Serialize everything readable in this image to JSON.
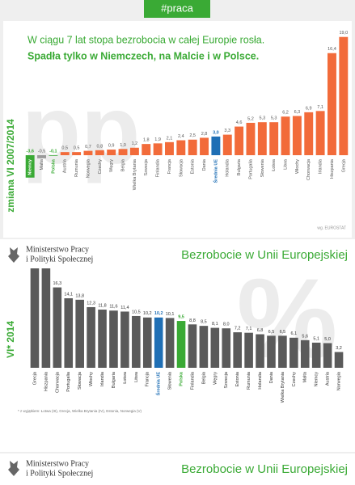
{
  "header": {
    "tag": "#praca"
  },
  "ministry": {
    "line1": "Ministerstwo Pracy",
    "line2": "i Polityki Społecznej",
    "title": "Bezrobocie w Unii Europejskiej"
  },
  "chart_data": [
    {
      "type": "bar",
      "title": "W ciągu 7 lat stopa bezrobocia w całej Europie rosła.",
      "subtitle": "Spadła tylko w Niemczech, na Malcie i w Polsce.",
      "side_label": "zmiana VI 2007/2014",
      "watermark": "pp",
      "source": "wg. EUROSTAT",
      "categories": [
        "Niemcy",
        "Malta",
        "Polska",
        "Austria",
        "Rumunia",
        "Norwegia",
        "Czechy",
        "Węgry",
        "Belgia",
        "Wielka Brytania",
        "Szwecja",
        "Finlandia",
        "Francja",
        "Słowacja",
        "Estonia",
        "Dania",
        "Średnia UE",
        "Holandia",
        "Bułgaria",
        "Portugalia",
        "Słowenia",
        "Łotwa",
        "Litwa",
        "Włochy",
        "Chorwacja",
        "Irlandia",
        "Hiszpania",
        "Grecja"
      ],
      "values": [
        -3.6,
        -0.5,
        -0.1,
        0.5,
        0.5,
        0.7,
        0.8,
        0.9,
        1.0,
        1.2,
        1.8,
        1.9,
        2.1,
        2.4,
        2.5,
        2.8,
        3.0,
        3.3,
        4.6,
        5.2,
        5.3,
        5.3,
        6.2,
        6.3,
        6.9,
        7.1,
        16.4,
        19.0
      ],
      "value_labels": [
        "-3,6",
        "-0,5",
        "-0,1",
        "0,5",
        "0,5",
        "0,7",
        "0,8",
        "0,9",
        "1,0",
        "1,2",
        "1,8",
        "1,9",
        "2,1",
        "2,4",
        "2,5",
        "2,8",
        "3,0",
        "3,3",
        "4,6",
        "5,2",
        "5,3",
        "5,3",
        "6,2",
        "6,3",
        "6,9",
        "7,1",
        "16,4",
        "19,0"
      ],
      "colors": [
        "#3aaa35",
        "#9a9a9a",
        "#3aaa35",
        "#f26b3a",
        "#f26b3a",
        "#f26b3a",
        "#f26b3a",
        "#f26b3a",
        "#f26b3a",
        "#f26b3a",
        "#f26b3a",
        "#f26b3a",
        "#f26b3a",
        "#f26b3a",
        "#f26b3a",
        "#f26b3a",
        "#1f6fb5",
        "#f26b3a",
        "#f26b3a",
        "#f26b3a",
        "#f26b3a",
        "#f26b3a",
        "#f26b3a",
        "#f26b3a",
        "#f26b3a",
        "#f26b3a",
        "#f26b3a",
        "#f26b3a"
      ]
    },
    {
      "type": "bar",
      "side_label": "VI* 2014",
      "watermark": "%",
      "footnote": "* z wyjątkiem: Łotwa (III), Grecja, Wielka Brytania (IV), Estonia, Norwegia (V)",
      "categories": [
        "Grecja",
        "Hiszpania",
        "Chorwacja",
        "Portugalia",
        "Słowacja",
        "Włochy",
        "Irlandia",
        "Bułgaria",
        "Łotwa",
        "Litwa",
        "Francja",
        "Średnia UE",
        "Słowenia",
        "Polska",
        "Finlandia",
        "Belgia",
        "Węgry",
        "Szwecja",
        "Estonia",
        "Rumunia",
        "Holandia",
        "Dania",
        "Wielka Brytania",
        "Czechy",
        "Malta",
        "Niemcy",
        "Austria",
        "Norwegia"
      ],
      "values": [
        27.3,
        24.5,
        16.3,
        14.1,
        13.8,
        12.3,
        11.8,
        11.6,
        11.4,
        10.5,
        10.2,
        10.2,
        10.1,
        9.5,
        8.8,
        8.5,
        8.1,
        8.0,
        7.2,
        7.1,
        6.8,
        6.5,
        6.5,
        6.1,
        5.6,
        5.1,
        5.0,
        3.2
      ],
      "value_labels": [
        null,
        null,
        "16,3",
        "14,1",
        "13,8",
        "12,3",
        "11,8",
        "11,6",
        "11,4",
        "10,5",
        "10,2",
        "10,2",
        "10,1",
        "9,5",
        "8,8",
        "8,5",
        "8,1",
        "8,0",
        "7,2",
        "7,1",
        "6,8",
        "6,5",
        "6,5",
        "6,1",
        "5,6",
        "5,1",
        "5,0",
        "3,2"
      ],
      "colors": [
        "#5a5a5a",
        "#5a5a5a",
        "#5a5a5a",
        "#5a5a5a",
        "#5a5a5a",
        "#5a5a5a",
        "#5a5a5a",
        "#5a5a5a",
        "#5a5a5a",
        "#5a5a5a",
        "#5a5a5a",
        "#1f6fb5",
        "#5a5a5a",
        "#3aaa35",
        "#5a5a5a",
        "#5a5a5a",
        "#5a5a5a",
        "#5a5a5a",
        "#5a5a5a",
        "#5a5a5a",
        "#5a5a5a",
        "#5a5a5a",
        "#5a5a5a",
        "#5a5a5a",
        "#5a5a5a",
        "#5a5a5a",
        "#5a5a5a",
        "#5a5a5a"
      ]
    }
  ]
}
